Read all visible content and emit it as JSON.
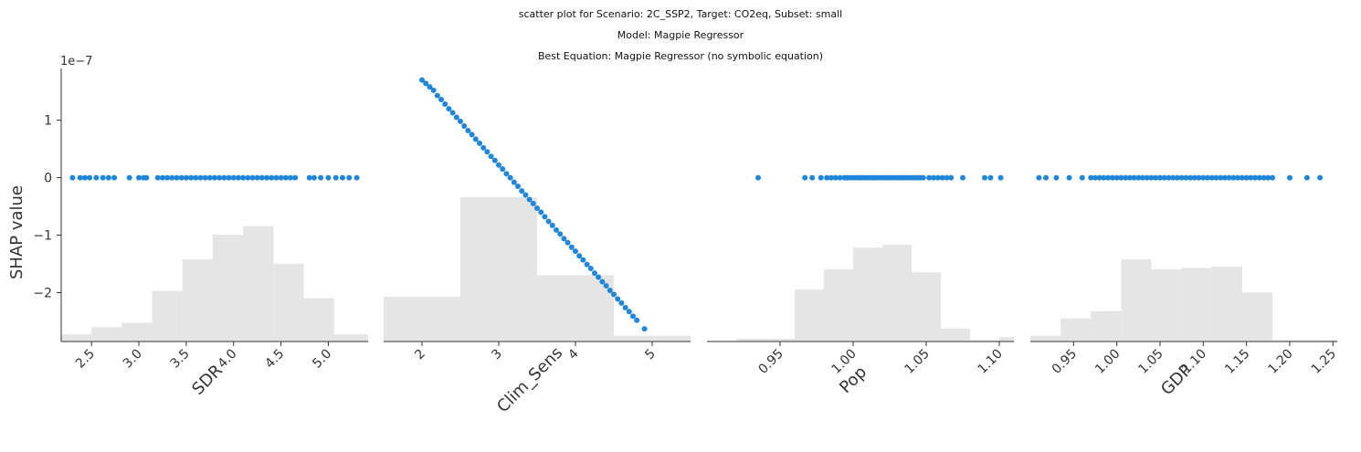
{
  "titles": {
    "line1": "scatter plot for Scenario: 2C_SSP2, Target: CO2eq, Subset: small",
    "line2": "Model: Magpie Regressor",
    "line3": "Best Equation: Magpie Regressor (no symbolic equation)"
  },
  "colors": {
    "points": "#1f86d9",
    "hist": "#e5e5e5",
    "axis": "#333333"
  },
  "chart_data": {
    "type": "scatter",
    "ylabel": "SHAP value",
    "y_offset": "1e−7",
    "ylim": [
      -2.85,
      1.9
    ],
    "yticks": [
      1,
      0,
      -1,
      -2
    ],
    "ytick_labels": [
      "1",
      "0",
      "−1",
      "−2"
    ],
    "panels": [
      {
        "xlabel": "SDR",
        "xlim": [
          2.18,
          5.42
        ],
        "xticks": [
          2.5,
          3.0,
          3.5,
          4.0,
          4.5,
          5.0
        ],
        "xtick_labels": [
          "2.5",
          "3.0",
          "3.5",
          "4.0",
          "4.5",
          "5.0"
        ],
        "hist_edges": [
          2.18,
          2.5,
          2.82,
          3.14,
          3.46,
          3.78,
          4.1,
          4.42,
          4.74,
          5.06,
          5.42
        ],
        "hist_heights": [
          0.05,
          0.1,
          0.13,
          0.35,
          0.57,
          0.74,
          0.8,
          0.54,
          0.3,
          0.05
        ],
        "x": [
          2.3,
          2.38,
          2.43,
          2.48,
          2.55,
          2.62,
          2.68,
          2.74,
          2.9,
          3.0,
          3.05,
          3.08,
          3.2,
          3.25,
          3.3,
          3.35,
          3.4,
          3.45,
          3.5,
          3.55,
          3.6,
          3.65,
          3.7,
          3.75,
          3.8,
          3.85,
          3.9,
          3.95,
          4.0,
          4.05,
          4.1,
          4.15,
          4.2,
          4.25,
          4.3,
          4.35,
          4.4,
          4.45,
          4.5,
          4.55,
          4.6,
          4.65,
          4.8,
          4.85,
          4.92,
          5.0,
          5.08,
          5.15,
          5.22,
          5.3
        ],
        "y": [
          0,
          0,
          0,
          0,
          0,
          0,
          0,
          0,
          0,
          0,
          0,
          0,
          0,
          0,
          0,
          0,
          0,
          0,
          0,
          0,
          0,
          0,
          0,
          0,
          0,
          0,
          0,
          0,
          0,
          0,
          0,
          0,
          0,
          0,
          0,
          0,
          0,
          0,
          0,
          0,
          0,
          0,
          0,
          0,
          0,
          0,
          0,
          0,
          0,
          0
        ]
      },
      {
        "xlabel": "Clim_Sens",
        "xlim": [
          1.5,
          5.5
        ],
        "xticks": [
          2,
          3,
          4,
          5
        ],
        "xtick_labels": [
          "2",
          "3",
          "4",
          "5"
        ],
        "hist_edges": [
          1.5,
          2.5,
          3.5,
          4.5,
          5.5
        ],
        "hist_heights": [
          0.31,
          1.0,
          0.46,
          0.04
        ],
        "x": [
          2.0,
          2.05,
          2.1,
          2.15,
          2.2,
          2.25,
          2.3,
          2.35,
          2.4,
          2.45,
          2.5,
          2.55,
          2.6,
          2.65,
          2.7,
          2.75,
          2.8,
          2.85,
          2.9,
          2.95,
          3.0,
          3.05,
          3.1,
          3.15,
          3.2,
          3.25,
          3.3,
          3.35,
          3.4,
          3.45,
          3.5,
          3.55,
          3.6,
          3.65,
          3.7,
          3.75,
          3.8,
          3.85,
          3.9,
          3.95,
          4.0,
          4.05,
          4.1,
          4.15,
          4.2,
          4.25,
          4.3,
          4.35,
          4.4,
          4.45,
          4.5,
          4.55,
          4.6,
          4.65,
          4.7,
          4.75,
          4.8,
          4.9
        ],
        "y": [
          1.7,
          1.64,
          1.58,
          1.52,
          1.43,
          1.36,
          1.28,
          1.2,
          1.13,
          1.05,
          0.98,
          0.9,
          0.82,
          0.75,
          0.67,
          0.6,
          0.52,
          0.45,
          0.37,
          0.3,
          0.22,
          0.15,
          0.07,
          0.0,
          -0.08,
          -0.15,
          -0.23,
          -0.3,
          -0.38,
          -0.45,
          -0.53,
          -0.6,
          -0.68,
          -0.76,
          -0.83,
          -0.91,
          -0.98,
          -1.06,
          -1.13,
          -1.21,
          -1.28,
          -1.36,
          -1.43,
          -1.51,
          -1.58,
          -1.66,
          -1.73,
          -1.81,
          -1.88,
          -1.96,
          -2.03,
          -2.11,
          -2.18,
          -2.26,
          -2.33,
          -2.41,
          -2.48,
          -2.63
        ]
      },
      {
        "xlabel": "Pop",
        "xlim": [
          0.9,
          1.11
        ],
        "xticks": [
          0.95,
          1.0,
          1.05,
          1.1
        ],
        "xtick_labels": [
          "0.95",
          "1.00",
          "1.05",
          "1.10"
        ],
        "hist_edges": [
          0.9,
          0.92,
          0.94,
          0.96,
          0.98,
          1.0,
          1.02,
          1.04,
          1.06,
          1.08,
          1.1,
          1.11
        ],
        "hist_heights": [
          0.0,
          0.02,
          0.02,
          0.36,
          0.5,
          0.65,
          0.67,
          0.48,
          0.09,
          0.01,
          0.03
        ],
        "x": [
          0.935,
          0.967,
          0.972,
          0.978,
          0.982,
          0.985,
          0.988,
          0.991,
          0.994,
          0.996,
          0.998,
          1.0,
          1.002,
          1.004,
          1.006,
          1.008,
          1.01,
          1.012,
          1.014,
          1.016,
          1.018,
          1.02,
          1.022,
          1.024,
          1.026,
          1.028,
          1.03,
          1.032,
          1.034,
          1.036,
          1.038,
          1.04,
          1.042,
          1.044,
          1.046,
          1.048,
          1.052,
          1.055,
          1.058,
          1.061,
          1.064,
          1.067,
          1.075,
          1.09,
          1.094,
          1.101
        ],
        "y": [
          0,
          0,
          0,
          0,
          0,
          0,
          0,
          0,
          0,
          0,
          0,
          0,
          0,
          0,
          0,
          0,
          0,
          0,
          0,
          0,
          0,
          0,
          0,
          0,
          0,
          0,
          0,
          0,
          0,
          0,
          0,
          0,
          0,
          0,
          0,
          0,
          0,
          0,
          0,
          0,
          0,
          0,
          0,
          0,
          0,
          0
        ]
      },
      {
        "xlabel": "GDP",
        "xlim": [
          0.9,
          1.255
        ],
        "xticks": [
          0.95,
          1.0,
          1.05,
          1.1,
          1.15,
          1.2,
          1.25
        ],
        "xtick_labels": [
          "0.95",
          "1.00",
          "1.05",
          "1.10",
          "1.15",
          "1.20",
          "1.25"
        ],
        "hist_edges": [
          0.9,
          0.935,
          0.97,
          1.005,
          1.04,
          1.075,
          1.11,
          1.145,
          1.18,
          1.215,
          1.255
        ],
        "hist_heights": [
          0.04,
          0.16,
          0.21,
          0.57,
          0.5,
          0.51,
          0.52,
          0.34,
          0.01,
          0.01
        ],
        "x": [
          0.91,
          0.918,
          0.93,
          0.945,
          0.96,
          0.97,
          0.975,
          0.98,
          0.985,
          0.99,
          0.995,
          1.0,
          1.005,
          1.01,
          1.015,
          1.02,
          1.025,
          1.03,
          1.035,
          1.04,
          1.045,
          1.05,
          1.055,
          1.06,
          1.065,
          1.07,
          1.075,
          1.08,
          1.085,
          1.09,
          1.095,
          1.1,
          1.105,
          1.11,
          1.115,
          1.12,
          1.125,
          1.13,
          1.135,
          1.14,
          1.145,
          1.15,
          1.155,
          1.16,
          1.165,
          1.17,
          1.175,
          1.18,
          1.2,
          1.22,
          1.235
        ],
        "y": [
          0,
          0,
          0,
          0,
          0,
          0,
          0,
          0,
          0,
          0,
          0,
          0,
          0,
          0,
          0,
          0,
          0,
          0,
          0,
          0,
          0,
          0,
          0,
          0,
          0,
          0,
          0,
          0,
          0,
          0,
          0,
          0,
          0,
          0,
          0,
          0,
          0,
          0,
          0,
          0,
          0,
          0,
          0,
          0,
          0,
          0,
          0,
          0,
          0,
          0,
          0
        ]
      }
    ]
  }
}
